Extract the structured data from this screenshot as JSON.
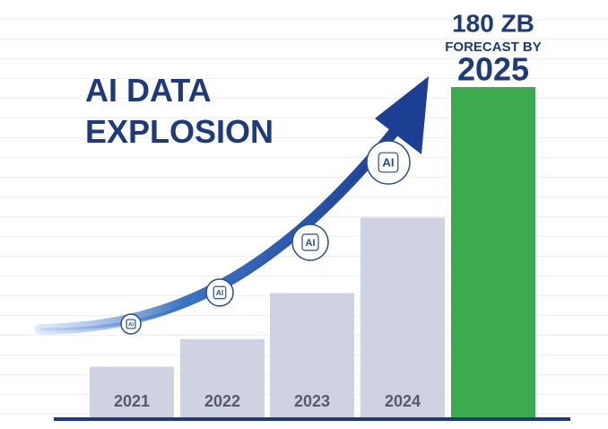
{
  "chart_data": {
    "type": "bar",
    "title": "AI DATA EXPLOSION",
    "categories": [
      "2021",
      "2022",
      "2023",
      "2024",
      "2025"
    ],
    "values": [
      28,
      43,
      68,
      109,
      180
    ],
    "value_labels": [
      null,
      null,
      null,
      null,
      "180 ZB"
    ],
    "annotation": "FORECAST BY",
    "icon_label": "AI",
    "colors": [
      "#cfd2e2",
      "#cfd2e2",
      "#cfd2e2",
      "#cfd2e2",
      "#3daa4f"
    ],
    "ylim": [
      0,
      180
    ]
  }
}
